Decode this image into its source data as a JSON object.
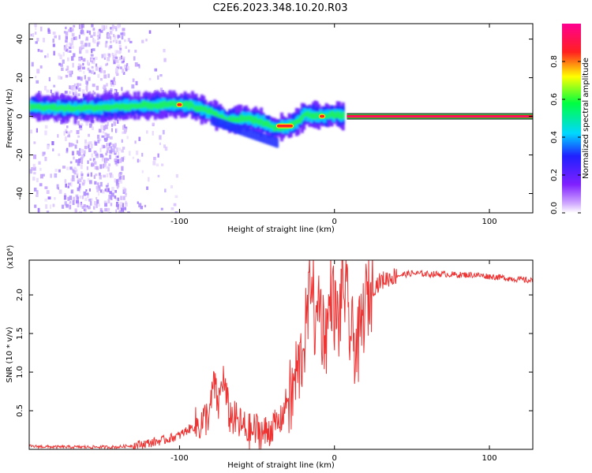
{
  "title": "C2E6.2023.348.10.20.R03",
  "chart_data": [
    {
      "type": "heatmap",
      "xlabel": "Height of straight line (km)",
      "ylabel": "Frequency (Hz)",
      "xlim": [
        -197,
        128
      ],
      "ylim": [
        -50,
        48
      ],
      "x_ticks": [
        -100,
        0,
        100
      ],
      "y_ticks": [
        40,
        20,
        0,
        -20,
        -40
      ],
      "colorbar": {
        "label": "Normalized spectral amplitude",
        "range": [
          0,
          1
        ],
        "ticks": [
          "0.0",
          "0.2",
          "0.4",
          "0.6",
          "0.8"
        ],
        "colormap": [
          "#ffffff",
          "#b060ff",
          "#3030ff",
          "#00e0ff",
          "#00ff40",
          "#ffff00",
          "#ff2020",
          "#ff00a0"
        ]
      },
      "ridge": {
        "x": [
          -197,
          -170,
          -140,
          -110,
          -95,
          -80,
          -70,
          -60,
          -50,
          -40,
          -30,
          -25,
          -20,
          -10,
          0,
          5,
          128
        ],
        "y": [
          5,
          4,
          5,
          6,
          6,
          2,
          -2,
          -1,
          -2,
          -6,
          -5,
          -3,
          1,
          0,
          1,
          0,
          0
        ]
      },
      "peaks": [
        {
          "x": -100,
          "y": 6
        },
        {
          "x": -32,
          "y": -5
        },
        {
          "x": -8,
          "y": 0
        },
        {
          "x": 65,
          "y": 0
        }
      ]
    },
    {
      "type": "line",
      "xlabel": "Height of straight line (km)",
      "ylabel": "SNR (10 * v/v)",
      "multiplier": "(x10⁴)",
      "xlim": [
        -197,
        128
      ],
      "ylim": [
        0,
        2.45
      ],
      "x_ticks": [
        -100,
        0,
        100
      ],
      "y_ticks": [
        0.5,
        1.0,
        1.5,
        2.0
      ],
      "y_tick_labels": [
        "0.5",
        "1.0",
        "1.5",
        "2.0"
      ],
      "series": [
        {
          "color": "#ee3333",
          "x": [
            -197,
            -180,
            -160,
            -140,
            -130,
            -120,
            -110,
            -100,
            -95,
            -90,
            -85,
            -80,
            -78,
            -75,
            -72,
            -68,
            -65,
            -60,
            -55,
            -50,
            -45,
            -40,
            -35,
            -32,
            -30,
            -28,
            -25,
            -22,
            -20,
            -18,
            -16,
            -15,
            -12,
            -10,
            -8,
            -5,
            -2,
            0,
            3,
            5,
            8,
            10,
            15,
            20,
            25,
            30,
            35,
            40,
            50,
            60,
            70,
            80,
            90,
            100,
            110,
            120,
            128
          ],
          "y": [
            0.04,
            0.03,
            0.03,
            0.03,
            0.05,
            0.08,
            0.12,
            0.18,
            0.25,
            0.3,
            0.35,
            0.5,
            0.88,
            0.55,
            0.95,
            0.45,
            0.4,
            0.3,
            0.22,
            0.25,
            0.2,
            0.3,
            0.35,
            0.55,
            0.7,
            0.6,
            0.95,
            1.1,
            1.4,
            1.6,
            2.0,
            2.45,
            1.4,
            2.1,
            1.6,
            1.5,
            2.1,
            1.8,
            1.6,
            2.2,
            1.9,
            1.5,
            1.3,
            1.9,
            2.1,
            2.18,
            2.22,
            2.25,
            2.28,
            2.27,
            2.27,
            2.26,
            2.26,
            2.24,
            2.22,
            2.2,
            2.18
          ]
        }
      ]
    }
  ]
}
